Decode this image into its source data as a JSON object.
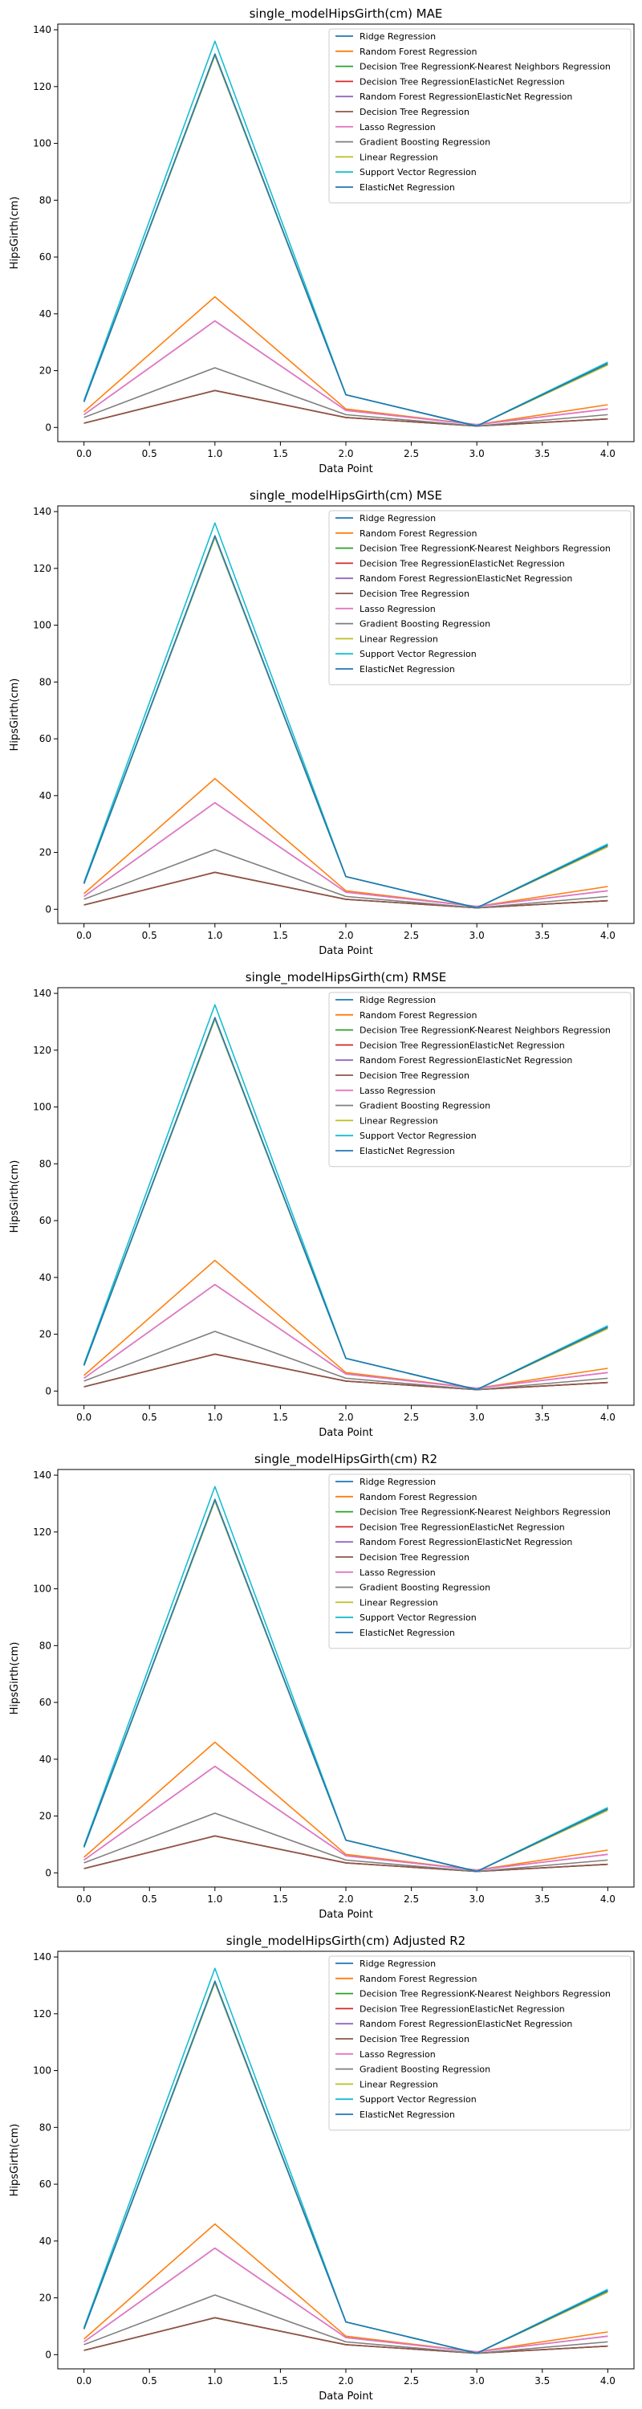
{
  "chart_data": [
    {
      "type": "line",
      "title": "single_modelHipsGirth(cm) MAE",
      "xlabel": "Data Point",
      "ylabel": "HipsGirth(cm)",
      "x": [
        0,
        1,
        2,
        3,
        4
      ],
      "xlim": [
        -0.2,
        4.2
      ],
      "ylim": [
        -5,
        142
      ],
      "xticks": [
        "0.0",
        "0.5",
        "1.0",
        "1.5",
        "2.0",
        "2.5",
        "3.0",
        "3.5",
        "4.0"
      ],
      "yticks": [
        "0",
        "20",
        "40",
        "60",
        "80",
        "100",
        "120",
        "140"
      ],
      "legend_position": "top-right",
      "series": [
        {
          "name": "Ridge Regression",
          "color": "#1f77b4",
          "values": [
            9.0,
            131.0,
            11.5,
            0.5,
            22.5
          ]
        },
        {
          "name": "Random Forest Regression",
          "color": "#ff7f0e",
          "values": [
            5.5,
            46.0,
            6.5,
            1.0,
            8.0
          ]
        },
        {
          "name": "Decision Tree RegressionK-Nearest Neighbors Regression",
          "color": "#2ca02c",
          "values": [
            1.5,
            13.0,
            3.5,
            0.5,
            3.0
          ]
        },
        {
          "name": "Decision Tree RegressionElasticNet Regression",
          "color": "#d62728",
          "values": [
            1.5,
            13.0,
            3.5,
            0.5,
            3.0
          ]
        },
        {
          "name": "Random Forest RegressionElasticNet Regression",
          "color": "#9467bd",
          "values": [
            4.5,
            37.5,
            6.0,
            1.0,
            6.5
          ]
        },
        {
          "name": "Decision Tree Regression",
          "color": "#8c564b",
          "values": [
            1.5,
            13.0,
            3.5,
            0.5,
            3.0
          ]
        },
        {
          "name": "Lasso Regression",
          "color": "#e377c2",
          "values": [
            4.5,
            37.5,
            6.0,
            1.0,
            6.5
          ]
        },
        {
          "name": "Gradient Boosting Regression",
          "color": "#7f7f7f",
          "values": [
            3.5,
            21.0,
            4.5,
            0.5,
            4.5
          ]
        },
        {
          "name": "Linear Regression",
          "color": "#bcbd22",
          "values": [
            9.0,
            131.0,
            11.5,
            0.5,
            22.0
          ]
        },
        {
          "name": "Support Vector Regression",
          "color": "#17becf",
          "values": [
            9.5,
            136.0,
            11.5,
            0.5,
            23.0
          ]
        },
        {
          "name": "ElasticNet Regression",
          "color": "#1f77b4",
          "values": [
            9.0,
            131.5,
            11.5,
            0.5,
            22.5
          ]
        }
      ]
    },
    {
      "type": "line",
      "title": "single_modelHipsGirth(cm) MSE",
      "xlabel": "Data Point",
      "ylabel": "HipsGirth(cm)",
      "x": [
        0,
        1,
        2,
        3,
        4
      ],
      "xlim": [
        -0.2,
        4.2
      ],
      "ylim": [
        -5,
        142
      ],
      "xticks": [
        "0.0",
        "0.5",
        "1.0",
        "1.5",
        "2.0",
        "2.5",
        "3.0",
        "3.5",
        "4.0"
      ],
      "yticks": [
        "0",
        "20",
        "40",
        "60",
        "80",
        "100",
        "120",
        "140"
      ],
      "legend_position": "top-right",
      "series": [
        {
          "name": "Ridge Regression",
          "color": "#1f77b4",
          "values": [
            9.0,
            131.0,
            11.5,
            0.5,
            22.5
          ]
        },
        {
          "name": "Random Forest Regression",
          "color": "#ff7f0e",
          "values": [
            5.5,
            46.0,
            6.5,
            1.0,
            8.0
          ]
        },
        {
          "name": "Decision Tree RegressionK-Nearest Neighbors Regression",
          "color": "#2ca02c",
          "values": [
            1.5,
            13.0,
            3.5,
            0.5,
            3.0
          ]
        },
        {
          "name": "Decision Tree RegressionElasticNet Regression",
          "color": "#d62728",
          "values": [
            1.5,
            13.0,
            3.5,
            0.5,
            3.0
          ]
        },
        {
          "name": "Random Forest RegressionElasticNet Regression",
          "color": "#9467bd",
          "values": [
            4.5,
            37.5,
            6.0,
            1.0,
            6.5
          ]
        },
        {
          "name": "Decision Tree Regression",
          "color": "#8c564b",
          "values": [
            1.5,
            13.0,
            3.5,
            0.5,
            3.0
          ]
        },
        {
          "name": "Lasso Regression",
          "color": "#e377c2",
          "values": [
            4.5,
            37.5,
            6.0,
            1.0,
            6.5
          ]
        },
        {
          "name": "Gradient Boosting Regression",
          "color": "#7f7f7f",
          "values": [
            3.5,
            21.0,
            4.5,
            0.5,
            4.5
          ]
        },
        {
          "name": "Linear Regression",
          "color": "#bcbd22",
          "values": [
            9.0,
            131.0,
            11.5,
            0.5,
            22.0
          ]
        },
        {
          "name": "Support Vector Regression",
          "color": "#17becf",
          "values": [
            9.5,
            136.0,
            11.5,
            0.5,
            23.0
          ]
        },
        {
          "name": "ElasticNet Regression",
          "color": "#1f77b4",
          "values": [
            9.0,
            131.5,
            11.5,
            0.5,
            22.5
          ]
        }
      ]
    },
    {
      "type": "line",
      "title": "single_modelHipsGirth(cm) RMSE",
      "xlabel": "Data Point",
      "ylabel": "HipsGirth(cm)",
      "x": [
        0,
        1,
        2,
        3,
        4
      ],
      "xlim": [
        -0.2,
        4.2
      ],
      "ylim": [
        -5,
        142
      ],
      "xticks": [
        "0.0",
        "0.5",
        "1.0",
        "1.5",
        "2.0",
        "2.5",
        "3.0",
        "3.5",
        "4.0"
      ],
      "yticks": [
        "0",
        "20",
        "40",
        "60",
        "80",
        "100",
        "120",
        "140"
      ],
      "legend_position": "top-right",
      "series": [
        {
          "name": "Ridge Regression",
          "color": "#1f77b4",
          "values": [
            9.0,
            131.0,
            11.5,
            0.5,
            22.5
          ]
        },
        {
          "name": "Random Forest Regression",
          "color": "#ff7f0e",
          "values": [
            5.5,
            46.0,
            6.5,
            1.0,
            8.0
          ]
        },
        {
          "name": "Decision Tree RegressionK-Nearest Neighbors Regression",
          "color": "#2ca02c",
          "values": [
            1.5,
            13.0,
            3.5,
            0.5,
            3.0
          ]
        },
        {
          "name": "Decision Tree RegressionElasticNet Regression",
          "color": "#d62728",
          "values": [
            1.5,
            13.0,
            3.5,
            0.5,
            3.0
          ]
        },
        {
          "name": "Random Forest RegressionElasticNet Regression",
          "color": "#9467bd",
          "values": [
            4.5,
            37.5,
            6.0,
            1.0,
            6.5
          ]
        },
        {
          "name": "Decision Tree Regression",
          "color": "#8c564b",
          "values": [
            1.5,
            13.0,
            3.5,
            0.5,
            3.0
          ]
        },
        {
          "name": "Lasso Regression",
          "color": "#e377c2",
          "values": [
            4.5,
            37.5,
            6.0,
            1.0,
            6.5
          ]
        },
        {
          "name": "Gradient Boosting Regression",
          "color": "#7f7f7f",
          "values": [
            3.5,
            21.0,
            4.5,
            0.5,
            4.5
          ]
        },
        {
          "name": "Linear Regression",
          "color": "#bcbd22",
          "values": [
            9.0,
            131.0,
            11.5,
            0.5,
            22.0
          ]
        },
        {
          "name": "Support Vector Regression",
          "color": "#17becf",
          "values": [
            9.5,
            136.0,
            11.5,
            0.5,
            23.0
          ]
        },
        {
          "name": "ElasticNet Regression",
          "color": "#1f77b4",
          "values": [
            9.0,
            131.5,
            11.5,
            0.5,
            22.5
          ]
        }
      ]
    },
    {
      "type": "line",
      "title": "single_modelHipsGirth(cm) R2",
      "xlabel": "Data Point",
      "ylabel": "HipsGirth(cm)",
      "x": [
        0,
        1,
        2,
        3,
        4
      ],
      "xlim": [
        -0.2,
        4.2
      ],
      "ylim": [
        -5,
        142
      ],
      "xticks": [
        "0.0",
        "0.5",
        "1.0",
        "1.5",
        "2.0",
        "2.5",
        "3.0",
        "3.5",
        "4.0"
      ],
      "yticks": [
        "0",
        "20",
        "40",
        "60",
        "80",
        "100",
        "120",
        "140"
      ],
      "legend_position": "top-right",
      "series": [
        {
          "name": "Ridge Regression",
          "color": "#1f77b4",
          "values": [
            9.0,
            131.0,
            11.5,
            0.5,
            22.5
          ]
        },
        {
          "name": "Random Forest Regression",
          "color": "#ff7f0e",
          "values": [
            5.5,
            46.0,
            6.5,
            1.0,
            8.0
          ]
        },
        {
          "name": "Decision Tree RegressionK-Nearest Neighbors Regression",
          "color": "#2ca02c",
          "values": [
            1.5,
            13.0,
            3.5,
            0.5,
            3.0
          ]
        },
        {
          "name": "Decision Tree RegressionElasticNet Regression",
          "color": "#d62728",
          "values": [
            1.5,
            13.0,
            3.5,
            0.5,
            3.0
          ]
        },
        {
          "name": "Random Forest RegressionElasticNet Regression",
          "color": "#9467bd",
          "values": [
            4.5,
            37.5,
            6.0,
            1.0,
            6.5
          ]
        },
        {
          "name": "Decision Tree Regression",
          "color": "#8c564b",
          "values": [
            1.5,
            13.0,
            3.5,
            0.5,
            3.0
          ]
        },
        {
          "name": "Lasso Regression",
          "color": "#e377c2",
          "values": [
            4.5,
            37.5,
            6.0,
            1.0,
            6.5
          ]
        },
        {
          "name": "Gradient Boosting Regression",
          "color": "#7f7f7f",
          "values": [
            3.5,
            21.0,
            4.5,
            0.5,
            4.5
          ]
        },
        {
          "name": "Linear Regression",
          "color": "#bcbd22",
          "values": [
            9.0,
            131.0,
            11.5,
            0.5,
            22.0
          ]
        },
        {
          "name": "Support Vector Regression",
          "color": "#17becf",
          "values": [
            9.5,
            136.0,
            11.5,
            0.5,
            23.0
          ]
        },
        {
          "name": "ElasticNet Regression",
          "color": "#1f77b4",
          "values": [
            9.0,
            131.5,
            11.5,
            0.5,
            22.5
          ]
        }
      ]
    },
    {
      "type": "line",
      "title": "single_modelHipsGirth(cm) Adjusted R2",
      "xlabel": "Data Point",
      "ylabel": "HipsGirth(cm)",
      "x": [
        0,
        1,
        2,
        3,
        4
      ],
      "xlim": [
        -0.2,
        4.2
      ],
      "ylim": [
        -5,
        142
      ],
      "xticks": [
        "0.0",
        "0.5",
        "1.0",
        "1.5",
        "2.0",
        "2.5",
        "3.0",
        "3.5",
        "4.0"
      ],
      "yticks": [
        "0",
        "20",
        "40",
        "60",
        "80",
        "100",
        "120",
        "140"
      ],
      "legend_position": "top-right",
      "series": [
        {
          "name": "Ridge Regression",
          "color": "#1f77b4",
          "values": [
            9.0,
            131.0,
            11.5,
            0.5,
            22.5
          ]
        },
        {
          "name": "Random Forest Regression",
          "color": "#ff7f0e",
          "values": [
            5.5,
            46.0,
            6.5,
            1.0,
            8.0
          ]
        },
        {
          "name": "Decision Tree RegressionK-Nearest Neighbors Regression",
          "color": "#2ca02c",
          "values": [
            1.5,
            13.0,
            3.5,
            0.5,
            3.0
          ]
        },
        {
          "name": "Decision Tree RegressionElasticNet Regression",
          "color": "#d62728",
          "values": [
            1.5,
            13.0,
            3.5,
            0.5,
            3.0
          ]
        },
        {
          "name": "Random Forest RegressionElasticNet Regression",
          "color": "#9467bd",
          "values": [
            4.5,
            37.5,
            6.0,
            1.0,
            6.5
          ]
        },
        {
          "name": "Decision Tree Regression",
          "color": "#8c564b",
          "values": [
            1.5,
            13.0,
            3.5,
            0.5,
            3.0
          ]
        },
        {
          "name": "Lasso Regression",
          "color": "#e377c2",
          "values": [
            4.5,
            37.5,
            6.0,
            1.0,
            6.5
          ]
        },
        {
          "name": "Gradient Boosting Regression",
          "color": "#7f7f7f",
          "values": [
            3.5,
            21.0,
            4.5,
            0.5,
            4.5
          ]
        },
        {
          "name": "Linear Regression",
          "color": "#bcbd22",
          "values": [
            9.0,
            131.0,
            11.5,
            0.5,
            22.0
          ]
        },
        {
          "name": "Support Vector Regression",
          "color": "#17becf",
          "values": [
            9.5,
            136.0,
            11.5,
            0.5,
            23.0
          ]
        },
        {
          "name": "ElasticNet Regression",
          "color": "#1f77b4",
          "values": [
            9.0,
            131.5,
            11.5,
            0.5,
            22.5
          ]
        }
      ]
    }
  ]
}
